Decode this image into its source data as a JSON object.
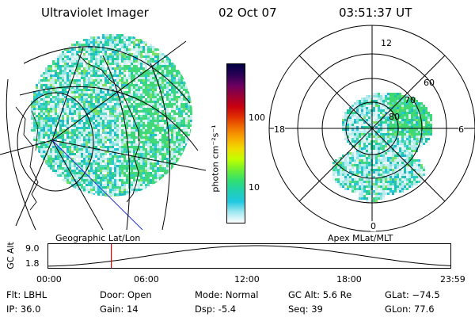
{
  "header": {
    "instrument": "Ultraviolet Imager",
    "date": "02 Oct 07",
    "time": "03:51:37 UT"
  },
  "colorbar": {
    "unit_label": "photon cm⁻²s⁻¹",
    "ticks": [
      "100",
      "10"
    ],
    "colors": [
      "#000044",
      "#2a0055",
      "#6a0060",
      "#9a0035",
      "#c80010",
      "#e03000",
      "#f07000",
      "#f8a800",
      "#f0dc00",
      "#c0ff00",
      "#70f030",
      "#30e070",
      "#20d0b0",
      "#20c8e0",
      "#a0e8f0",
      "#ffffff"
    ]
  },
  "left_panel": {
    "caption": "Geographic Lat/Lon"
  },
  "right_panel": {
    "caption": "Apex  MLat/MLT",
    "lat_labels": [
      "80",
      "70",
      "60"
    ],
    "mlt_labels": [
      "12",
      "18",
      "6",
      "0"
    ]
  },
  "gc_alt_plot": {
    "ylabel": "GC Alt",
    "y_ticks": [
      "9.0",
      "1.8"
    ],
    "x_ticks": [
      "00:00",
      "06:00",
      "12:00",
      "18:00",
      "23:59"
    ],
    "current_time_fraction": 0.158
  },
  "info": {
    "filt": "Flt: LBHL",
    "ip": "IP: 36.0",
    "door": "Door: Open",
    "gain": "Gain: 14",
    "mode": "Mode: Normal",
    "dsp": "Dsp:   -5.4",
    "gcalt": "GC Alt: 5.6 Re",
    "seq": "Seq: 39",
    "glat": "GLat: −74.5",
    "glon": "GLon:  77.6"
  }
}
